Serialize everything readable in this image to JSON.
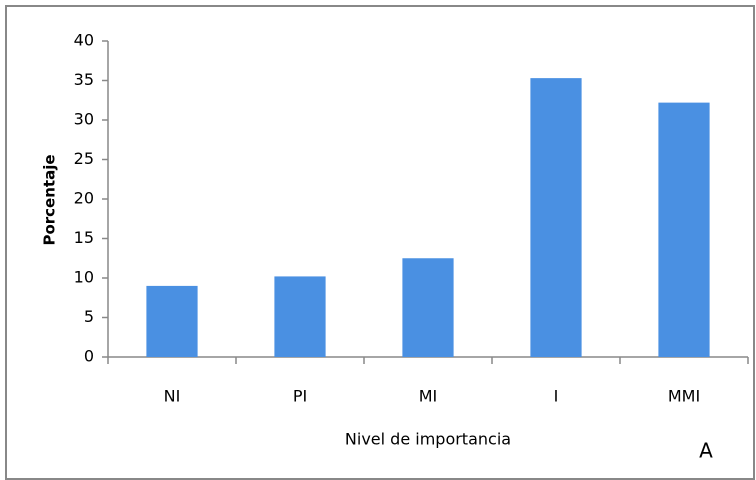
{
  "chart_data": {
    "type": "bar",
    "x_label": "Nivel de importancia",
    "y_label": "Porcentaje",
    "annotation": "A",
    "categories": [
      "NI",
      "PI",
      "MI",
      "I",
      "MMI"
    ],
    "values": [
      9,
      10.2,
      12.5,
      35.3,
      32.2
    ],
    "color": "#4a90e2",
    "ylim": [
      0,
      40
    ],
    "yticks": [
      0,
      5,
      10,
      15,
      20,
      25,
      30,
      35,
      40
    ],
    "grid": false
  }
}
